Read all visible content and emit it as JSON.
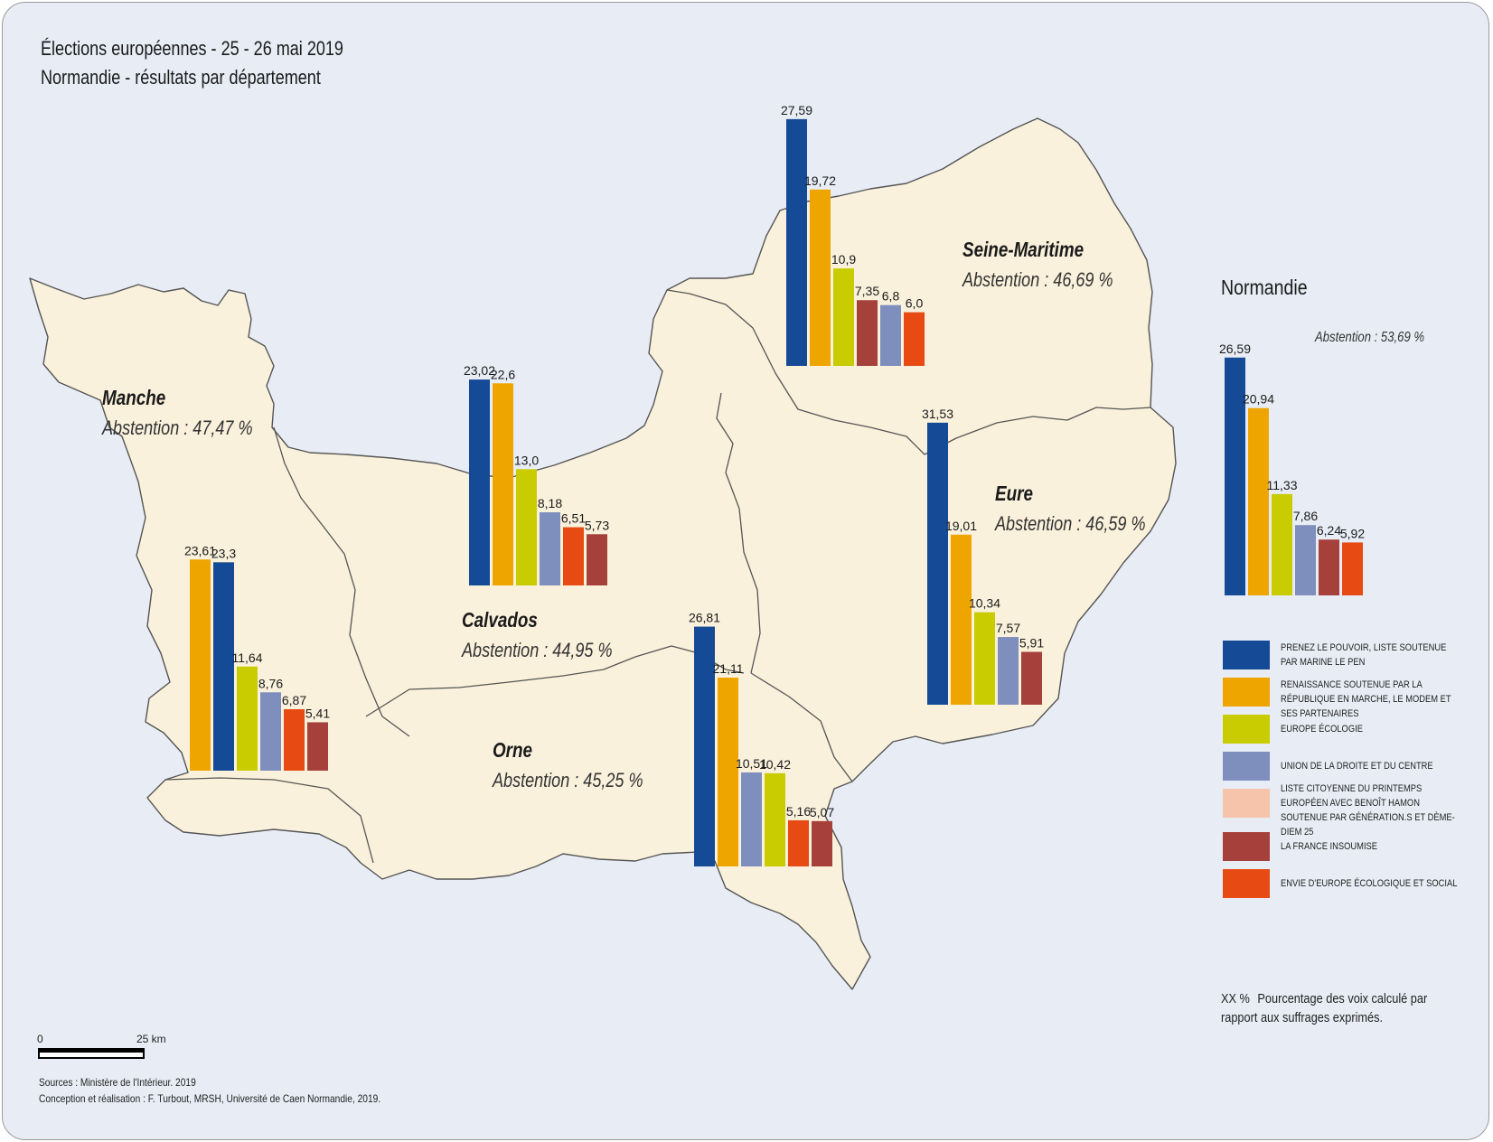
{
  "header": {
    "title_line1": "Élections européennes - 25 - 26 mai 2019",
    "title_line2": "Normandie - résultats par département"
  },
  "parties": [
    {
      "id": "rn",
      "label": "PRENEZ LE POUVOIR, LISTE SOUTENUE PAR MARINE LE PEN",
      "color": "#154a96"
    },
    {
      "id": "lrem",
      "label": "RENAISSANCE SOUTENUE PAR LA RÉPUBLIQUE EN MARCHE, LE MODEM ET SES PARTENAIRES",
      "color": "#efa500"
    },
    {
      "id": "eelv",
      "label": "EUROPE ÉCOLOGIE",
      "color": "#c8cc00"
    },
    {
      "id": "lr",
      "label": "UNION DE LA DROITE ET DU CENTRE",
      "color": "#7e8fbd"
    },
    {
      "id": "gs",
      "label": "LISTE CITOYENNE DU PRINTEMPS EUROPÉEN AVEC BENOÎT HAMON SOUTENUE PAR GÉNÉRATION.S ET DÈME-DIEM 25",
      "color": "#f6c4aa"
    },
    {
      "id": "lfi",
      "label": "LA FRANCE INSOUMISE",
      "color": "#a6403a"
    },
    {
      "id": "ps",
      "label": "ENVIE D'EUROPE ÉCOLOGIQUE ET SOCIAL",
      "color": "#e84a14"
    }
  ],
  "departments": [
    {
      "name": "Manche",
      "abstention": "Abstention : 47,47 %",
      "bars": [
        {
          "party": "lrem",
          "value": 23.61,
          "label": "23,61"
        },
        {
          "party": "rn",
          "value": 23.3,
          "label": "23,3"
        },
        {
          "party": "eelv",
          "value": 11.64,
          "label": "11,64"
        },
        {
          "party": "lr",
          "value": 8.76,
          "label": "8,76"
        },
        {
          "party": "ps",
          "value": 6.87,
          "label": "6,87"
        },
        {
          "party": "lfi",
          "value": 5.41,
          "label": "5,41"
        }
      ]
    },
    {
      "name": "Calvados",
      "abstention": "Abstention : 44,95 %",
      "bars": [
        {
          "party": "rn",
          "value": 23.02,
          "label": "23,02"
        },
        {
          "party": "lrem",
          "value": 22.6,
          "label": "22,6"
        },
        {
          "party": "eelv",
          "value": 13.0,
          "label": "13,0"
        },
        {
          "party": "lr",
          "value": 8.18,
          "label": "8,18"
        },
        {
          "party": "ps",
          "value": 6.51,
          "label": "6,51"
        },
        {
          "party": "lfi",
          "value": 5.73,
          "label": "5,73"
        }
      ]
    },
    {
      "name": "Seine-Maritime",
      "abstention": "Abstention : 46,69 %",
      "bars": [
        {
          "party": "rn",
          "value": 27.59,
          "label": "27,59"
        },
        {
          "party": "lrem",
          "value": 19.72,
          "label": "19,72"
        },
        {
          "party": "eelv",
          "value": 10.9,
          "label": "10,9"
        },
        {
          "party": "lfi",
          "value": 7.35,
          "label": "7,35"
        },
        {
          "party": "lr",
          "value": 6.8,
          "label": "6,8"
        },
        {
          "party": "ps",
          "value": 6.0,
          "label": "6,0"
        }
      ]
    },
    {
      "name": "Eure",
      "abstention": "Abstention : 46,59 %",
      "bars": [
        {
          "party": "rn",
          "value": 31.53,
          "label": "31,53"
        },
        {
          "party": "lrem",
          "value": 19.01,
          "label": "19,01"
        },
        {
          "party": "eelv",
          "value": 10.34,
          "label": "10,34"
        },
        {
          "party": "lr",
          "value": 7.57,
          "label": "7,57"
        },
        {
          "party": "lfi",
          "value": 5.91,
          "label": "5,91"
        }
      ]
    },
    {
      "name": "Orne",
      "abstention": "Abstention : 45,25 %",
      "bars": [
        {
          "party": "rn",
          "value": 26.81,
          "label": "26,81"
        },
        {
          "party": "lrem",
          "value": 21.11,
          "label": "21,11"
        },
        {
          "party": "lr",
          "value": 10.51,
          "label": "10,51"
        },
        {
          "party": "eelv",
          "value": 10.42,
          "label": "10,42"
        },
        {
          "party": "ps",
          "value": 5.16,
          "label": "5,16"
        },
        {
          "party": "lfi",
          "value": 5.07,
          "label": "5,07"
        }
      ]
    }
  ],
  "region": {
    "name": "Normandie",
    "abstention": "Abstention : 53,69 %",
    "bars": [
      {
        "party": "rn",
        "value": 26.59,
        "label": "26,59"
      },
      {
        "party": "lrem",
        "value": 20.94,
        "label": "20,94"
      },
      {
        "party": "eelv",
        "value": 11.33,
        "label": "11,33"
      },
      {
        "party": "lr",
        "value": 7.86,
        "label": "7,86"
      },
      {
        "party": "lfi",
        "value": 6.24,
        "label": "6,24"
      },
      {
        "party": "ps",
        "value": 5.92,
        "label": "5,92"
      }
    ]
  },
  "note": {
    "marker": "XX %",
    "text": "Pourcentage des voix calculé par rapport aux suffrages exprimés."
  },
  "scale": {
    "start": "0",
    "end": "25 km"
  },
  "sources": {
    "line1": "Sources : Ministère de l'Intérieur. 2019",
    "line2": "Conception et réalisation : F. Turbout, MRSH, Université de Caen Normandie, 2019."
  },
  "colors": {
    "background": "#e8edf5",
    "land": "#faf1dc",
    "border": "#555555"
  }
}
